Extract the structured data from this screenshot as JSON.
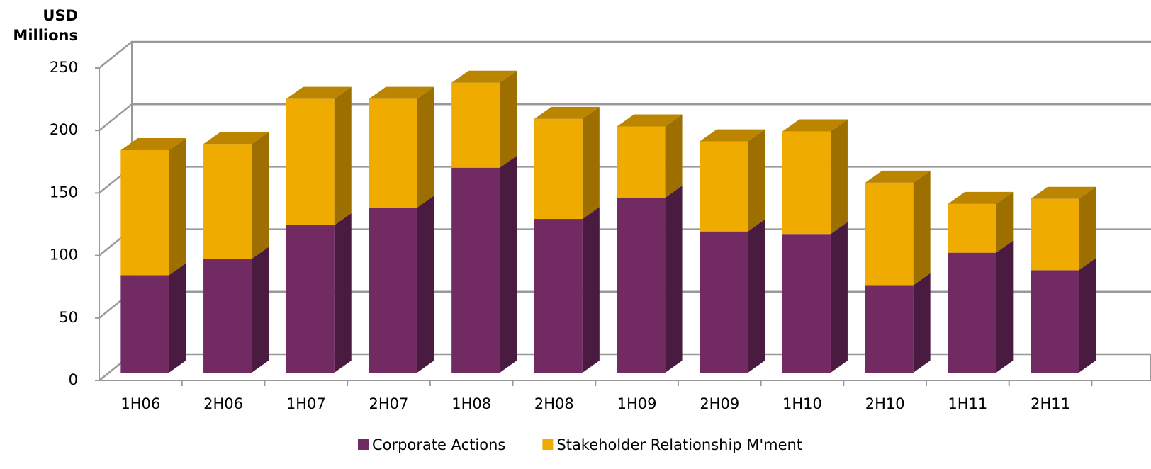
{
  "chart_data": {
    "type": "bar3d_stacked",
    "y_label": "USD Millions",
    "categories": [
      "1H06",
      "2H06",
      "1H07",
      "2H07",
      "1H08",
      "2H08",
      "1H09",
      "2H09",
      "1H10",
      "2H10",
      "1H11",
      "2H11"
    ],
    "series": [
      {
        "name": "Corporate Actions",
        "color": "#722a63",
        "values": [
          78,
          91,
          118,
          132,
          164,
          123,
          140,
          113,
          111,
          70,
          96,
          82
        ]
      },
      {
        "name": "Stakeholder Relationship M'ment",
        "color": "#f0ab00",
        "values": [
          100,
          92,
          101,
          87,
          68,
          80,
          57,
          72,
          82,
          82,
          39,
          57
        ]
      }
    ],
    "stacked": true,
    "ylim": [
      0,
      250
    ],
    "yticks": [
      0,
      50,
      100,
      150,
      200,
      250
    ],
    "grid": true
  }
}
